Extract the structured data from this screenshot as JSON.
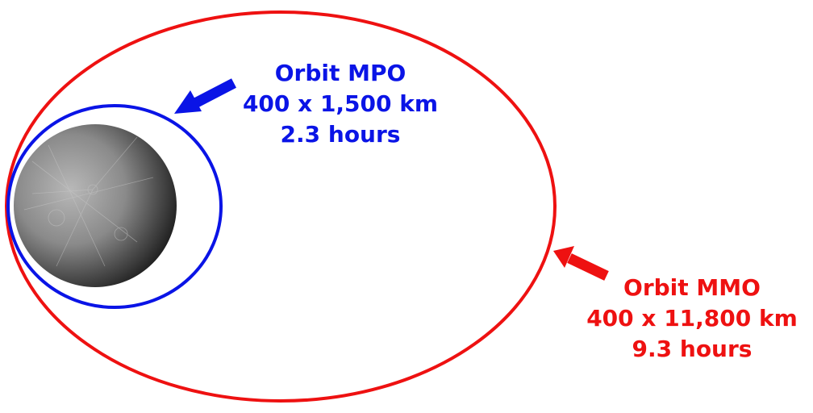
{
  "mpo": {
    "name": "Orbit MPO",
    "altitude": "400 x 1,500 km",
    "period": "2.3 hours",
    "color": "#0a14e6"
  },
  "mmo": {
    "name": "Orbit MMO",
    "altitude": "400 x 11,800 km",
    "period": "9.3 hours",
    "color": "#ee1111"
  },
  "planet": {
    "icon": "mercury-planet-image"
  }
}
